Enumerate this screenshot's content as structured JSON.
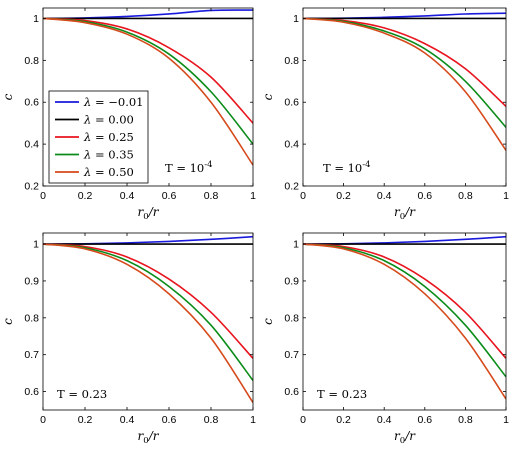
{
  "colors": {
    "blue": "#1a1adc",
    "black": "#000000",
    "red": "#e8141e",
    "green": "#0b8c1a",
    "orange": "#d64a1c"
  },
  "chart_data": [
    {
      "type": "line",
      "xlabel": "r0/r",
      "ylabel": "c",
      "xlim": [
        0,
        1
      ],
      "ylim": [
        0.2,
        1.05
      ],
      "xticks": [
        "0",
        "0.2",
        "0.4",
        "0.6",
        "0.8",
        "1"
      ],
      "yticks": [
        "0.2",
        "0.4",
        "0.6",
        "0.8",
        "1"
      ],
      "annotation": "T = 10^-4",
      "legend": {
        "position": "middle-left",
        "entries": [
          "λ = −0.01",
          "λ = 0.00",
          "λ = 0.25",
          "λ = 0.35",
          "λ = 0.50"
        ]
      },
      "series": [
        {
          "name": "λ = −0.01",
          "x": [
            0,
            0.2,
            0.4,
            0.6,
            0.8,
            1
          ],
          "values": [
            1,
            1.0024,
            1.0096,
            1.0216,
            1.0384,
            1.04
          ]
        },
        {
          "name": "λ = 0.00",
          "x": [
            0,
            1
          ],
          "values": [
            1,
            1
          ]
        },
        {
          "name": "λ = 0.25",
          "x": [
            0,
            0.2,
            0.4,
            0.6,
            0.8,
            1
          ],
          "values": [
            1,
            0.99,
            0.95,
            0.86,
            0.72,
            0.5
          ]
        },
        {
          "name": "λ = 0.35",
          "x": [
            0,
            0.2,
            0.4,
            0.6,
            0.8,
            1
          ],
          "values": [
            1,
            0.985,
            0.935,
            0.83,
            0.65,
            0.4
          ]
        },
        {
          "name": "λ = 0.50",
          "x": [
            0,
            0.2,
            0.4,
            0.6,
            0.8,
            1
          ],
          "values": [
            1,
            0.98,
            0.925,
            0.81,
            0.6,
            0.3
          ]
        }
      ]
    },
    {
      "type": "line",
      "xlabel": "r0/r",
      "ylabel": "c",
      "xlim": [
        0,
        1
      ],
      "ylim": [
        0.2,
        1.05
      ],
      "xticks": [
        "0",
        "0.2",
        "0.4",
        "0.6",
        "0.8",
        "1"
      ],
      "yticks": [
        "0.2",
        "0.4",
        "0.6",
        "0.8",
        "1"
      ],
      "annotation": "T = 10^-4",
      "series": [
        {
          "name": "λ = −0.01",
          "x": [
            0,
            0.2,
            0.4,
            0.6,
            0.8,
            1
          ],
          "values": [
            1,
            1.0013,
            1.0053,
            1.012,
            1.0213,
            1.025
          ]
        },
        {
          "name": "λ = 0.00",
          "x": [
            0,
            1
          ],
          "values": [
            1,
            1
          ]
        },
        {
          "name": "λ = 0.25",
          "x": [
            0,
            0.2,
            0.4,
            0.6,
            0.8,
            1
          ],
          "values": [
            1,
            0.99,
            0.955,
            0.88,
            0.76,
            0.58
          ]
        },
        {
          "name": "λ = 0.35",
          "x": [
            0,
            0.2,
            0.4,
            0.6,
            0.8,
            1
          ],
          "values": [
            1,
            0.986,
            0.94,
            0.855,
            0.7,
            0.48
          ]
        },
        {
          "name": "λ = 0.50",
          "x": [
            0,
            0.2,
            0.4,
            0.6,
            0.8,
            1
          ],
          "values": [
            1,
            0.982,
            0.93,
            0.835,
            0.65,
            0.37
          ]
        }
      ]
    },
    {
      "type": "line",
      "xlabel": "r0/r",
      "ylabel": "c",
      "xlim": [
        0,
        1
      ],
      "ylim": [
        0.55,
        1.03
      ],
      "xticks": [
        "0",
        "0.2",
        "0.4",
        "0.6",
        "0.8",
        "1"
      ],
      "yticks": [
        "0.6",
        "0.7",
        "0.8",
        "0.9",
        "1"
      ],
      "annotation": "T = 0.23",
      "series": [
        {
          "name": "λ = −0.01",
          "x": [
            0,
            0.2,
            0.4,
            0.6,
            0.8,
            1
          ],
          "values": [
            1,
            1.0008,
            1.0032,
            1.0072,
            1.0128,
            1.02
          ]
        },
        {
          "name": "λ = 0.00",
          "x": [
            0,
            1
          ],
          "values": [
            1,
            1
          ]
        },
        {
          "name": "λ = 0.25",
          "x": [
            0,
            0.2,
            0.4,
            0.6,
            0.8,
            1
          ],
          "values": [
            1,
            0.993,
            0.965,
            0.905,
            0.815,
            0.69
          ]
        },
        {
          "name": "λ = 0.35",
          "x": [
            0,
            0.2,
            0.4,
            0.6,
            0.8,
            1
          ],
          "values": [
            1,
            0.99,
            0.955,
            0.885,
            0.78,
            0.63
          ]
        },
        {
          "name": "λ = 0.50",
          "x": [
            0,
            0.2,
            0.4,
            0.6,
            0.8,
            1
          ],
          "values": [
            1,
            0.987,
            0.945,
            0.865,
            0.745,
            0.57
          ]
        }
      ]
    },
    {
      "type": "line",
      "xlabel": "r0/r",
      "ylabel": "c",
      "xlim": [
        0,
        1
      ],
      "ylim": [
        0.55,
        1.03
      ],
      "xticks": [
        "0",
        "0.2",
        "0.4",
        "0.6",
        "0.8",
        "1"
      ],
      "yticks": [
        "0.6",
        "0.7",
        "0.8",
        "0.9",
        "1"
      ],
      "annotation": "T = 0.23",
      "series": [
        {
          "name": "λ = −0.01",
          "x": [
            0,
            0.2,
            0.4,
            0.6,
            0.8,
            1
          ],
          "values": [
            1,
            1.0008,
            1.0032,
            1.0072,
            1.0128,
            1.02
          ]
        },
        {
          "name": "λ = 0.00",
          "x": [
            0,
            1
          ],
          "values": [
            1,
            1
          ]
        },
        {
          "name": "λ = 0.25",
          "x": [
            0,
            0.2,
            0.4,
            0.6,
            0.8,
            1
          ],
          "values": [
            1,
            0.993,
            0.965,
            0.905,
            0.815,
            0.69
          ]
        },
        {
          "name": "λ = 0.35",
          "x": [
            0,
            0.2,
            0.4,
            0.6,
            0.8,
            1
          ],
          "values": [
            1,
            0.99,
            0.955,
            0.885,
            0.78,
            0.64
          ]
        },
        {
          "name": "λ = 0.50",
          "x": [
            0,
            0.2,
            0.4,
            0.6,
            0.8,
            1
          ],
          "values": [
            1,
            0.987,
            0.945,
            0.865,
            0.745,
            0.58
          ]
        }
      ]
    }
  ]
}
